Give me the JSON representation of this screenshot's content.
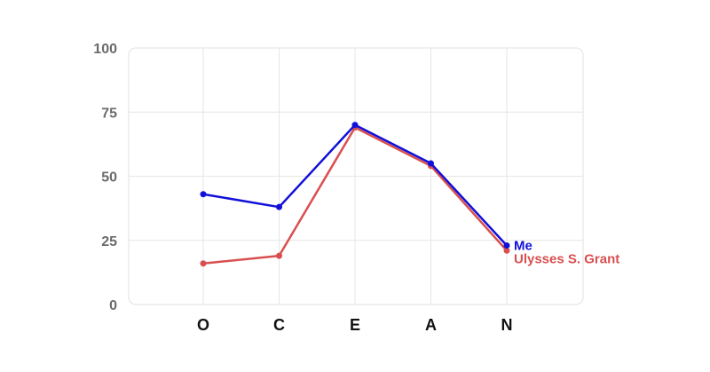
{
  "chart_data": {
    "type": "line",
    "categories": [
      "O",
      "C",
      "E",
      "A",
      "N"
    ],
    "ylim": [
      0,
      100
    ],
    "yticks": [
      "0",
      "25",
      "50",
      "75",
      "100"
    ],
    "grid": true,
    "series": [
      {
        "name": "Me",
        "color": "#1010d8",
        "values": [
          43,
          38,
          70,
          55,
          23
        ]
      },
      {
        "name": "Ulysses S. Grant",
        "color": "#d94f4f",
        "values": [
          16,
          19,
          69,
          54,
          21
        ]
      }
    ]
  }
}
